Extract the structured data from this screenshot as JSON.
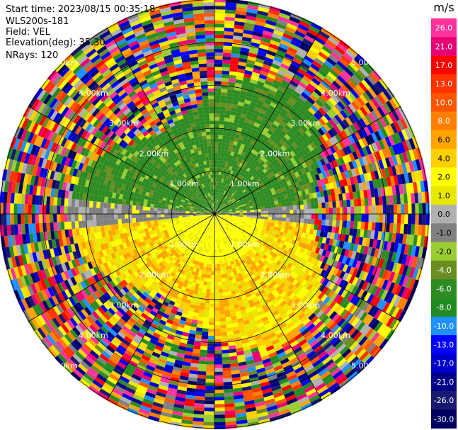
{
  "info": {
    "start_time": "Start time: 2023/08/15 00:35:18",
    "instrument": "WLS200s-181",
    "field": "Field: VEL",
    "elevation": "Elevation(deg): 35.30",
    "nrays": "NRays: 120"
  },
  "colorbar": {
    "unit": "m/s",
    "ticks": [
      "26.0",
      "21.0",
      "17.0",
      "13.0",
      "10.0",
      "8.0",
      "6.0",
      "4.0",
      "2.0",
      "1.0",
      "0.0",
      "-1.0",
      "-2.0",
      "-4.0",
      "-6.0",
      "-8.0",
      "-10.0",
      "-13.0",
      "-17.0",
      "-21.0",
      "-26.0",
      "-30.0"
    ],
    "colors": [
      "#ff3399",
      "#e60073",
      "#ff0000",
      "#ff3300",
      "#ff5500",
      "#ff8000",
      "#ffa500",
      "#ffd000",
      "#ffff00",
      "#e8e800",
      "#b0b0b0",
      "#808080",
      "#9acd32",
      "#6b8e23",
      "#2e8b22",
      "#228b22",
      "#1e90ff",
      "#0000ff",
      "#0000cd",
      "#00008b",
      "#191970",
      "#000060"
    ]
  },
  "chart_data": {
    "type": "heatmap",
    "title": "",
    "range_rings": [
      "1.00km",
      "2.00km",
      "3.00km",
      "4.00km",
      "5.00km"
    ],
    "rays": 120,
    "field": "VEL",
    "unit": "m/s",
    "vlim": [
      -30,
      26
    ]
  }
}
